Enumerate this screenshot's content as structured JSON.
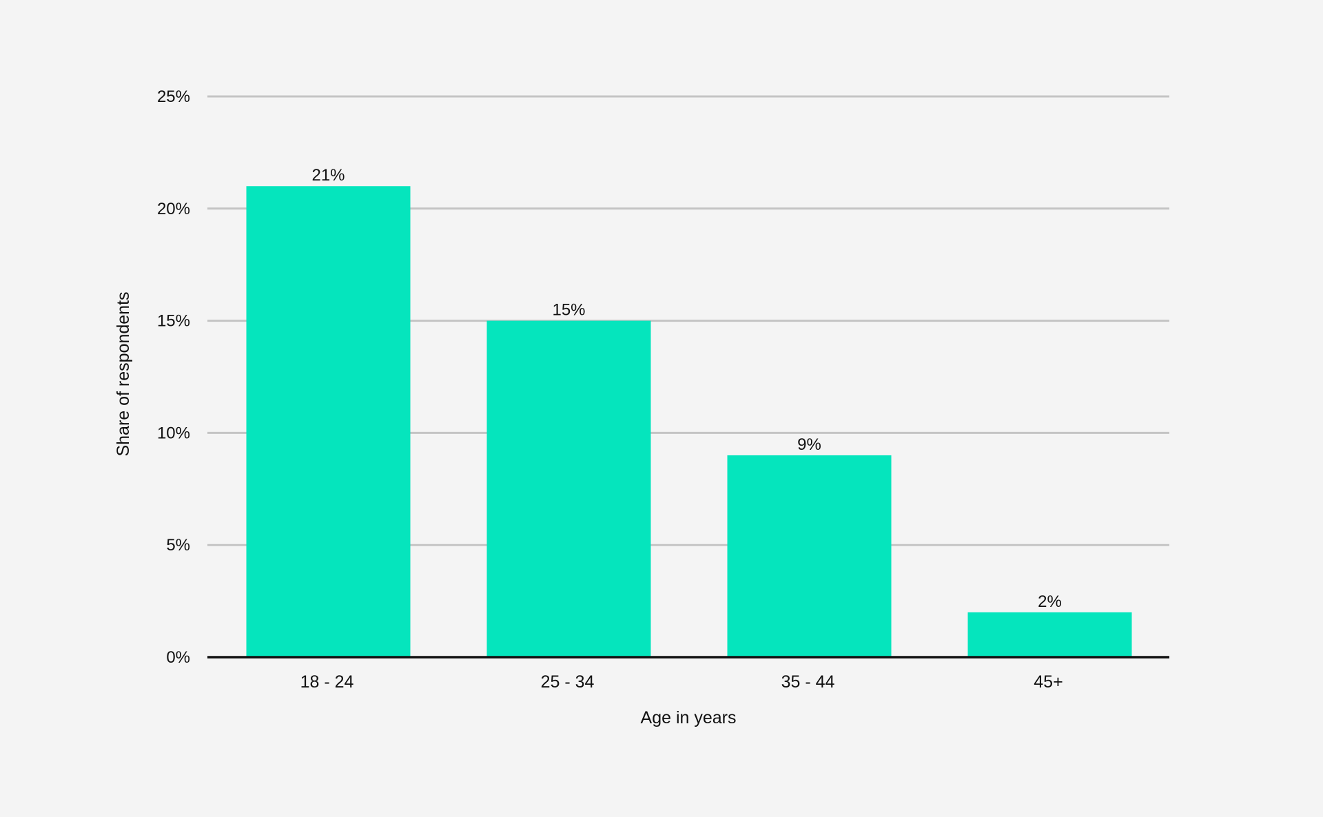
{
  "chart_data": {
    "type": "bar",
    "title": "",
    "xlabel": "Age in years",
    "ylabel": "Share of respondents",
    "categories": [
      "18 - 24",
      "25 - 34",
      "35 - 44",
      "45+"
    ],
    "values": [
      21,
      15,
      9,
      2
    ],
    "value_labels": [
      "21%",
      "15%",
      "9%",
      "2%"
    ],
    "ylim": [
      0,
      25
    ],
    "yticks": [
      0,
      5,
      10,
      15,
      20,
      25
    ],
    "ytick_labels": [
      "0%",
      "5%",
      "10%",
      "15%",
      "20%",
      "25%"
    ],
    "grid": true,
    "legend": "none"
  },
  "colors": {
    "background": "#f4f4f4",
    "bar": "#05e5bd",
    "grid": "#c4c4c4",
    "axis": "#111111",
    "text": "#111111"
  }
}
